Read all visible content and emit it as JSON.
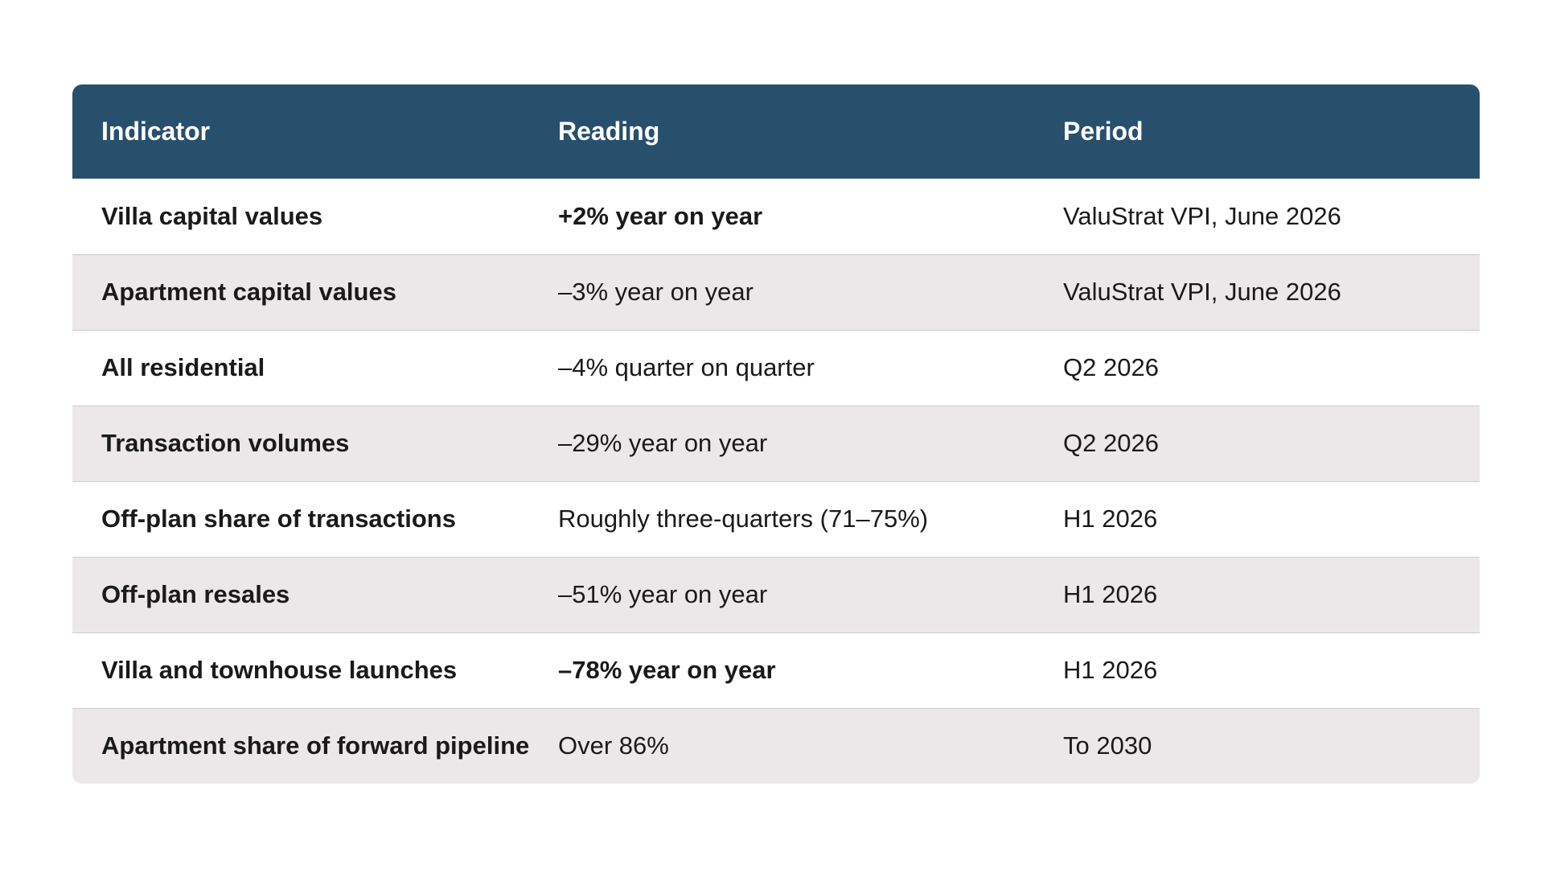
{
  "table": {
    "headers": [
      "Indicator",
      "Reading",
      "Period"
    ],
    "rows": [
      {
        "indicator": "Villa capital values",
        "reading": "+2% year on year",
        "reading_bold": true,
        "period": "ValuStrat VPI, June 2026"
      },
      {
        "indicator": "Apartment capital values",
        "reading": "–3% year on year",
        "reading_bold": false,
        "period": "ValuStrat VPI, June 2026"
      },
      {
        "indicator": "All residential",
        "reading": "–4% quarter on quarter",
        "reading_bold": false,
        "period": "Q2 2026"
      },
      {
        "indicator": "Transaction volumes",
        "reading": "–29% year on year",
        "reading_bold": false,
        "period": "Q2 2026"
      },
      {
        "indicator": "Off-plan share of transactions",
        "reading": "Roughly three-quarters (71–75%)",
        "reading_bold": false,
        "period": "H1 2026"
      },
      {
        "indicator": "Off-plan resales",
        "reading": "–51% year on year",
        "reading_bold": false,
        "period": "H1 2026"
      },
      {
        "indicator": "Villa and townhouse launches",
        "reading": "–78% year on year",
        "reading_bold": true,
        "period": "H1 2026"
      },
      {
        "indicator": "Apartment share of forward pipeline",
        "reading": "Over 86%",
        "reading_bold": false,
        "period": "To 2030"
      }
    ]
  },
  "colors": {
    "header_bg": "#28506d",
    "header_text": "#ffffff",
    "row_alt_bg": "#ece8e9",
    "row_bg": "#ffffff"
  }
}
